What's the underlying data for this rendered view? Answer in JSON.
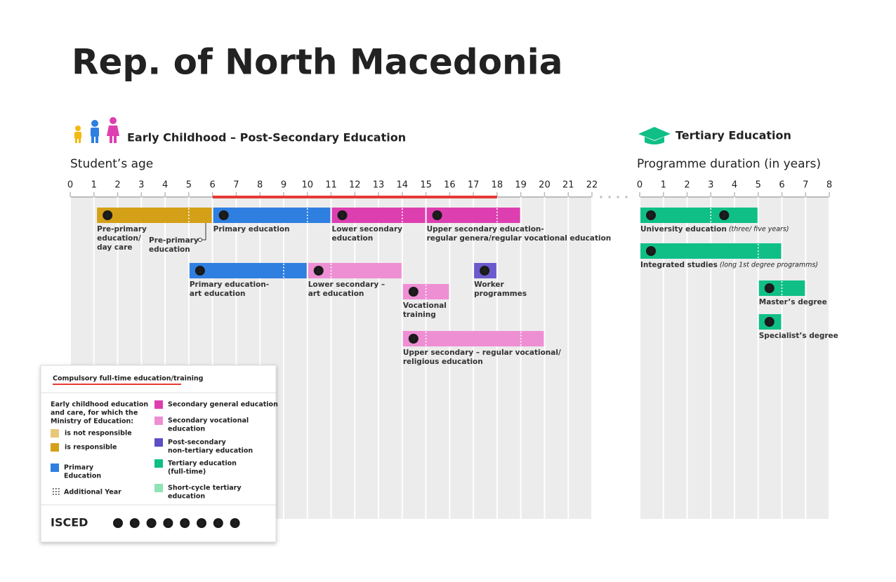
{
  "title": "Rep. of North Macedonia",
  "left": {
    "heading": "Early Childhood – Post-Secondary Education",
    "axis_title": "Student’s age",
    "ticks": [
      0,
      1,
      2,
      3,
      4,
      5,
      6,
      7,
      8,
      9,
      10,
      11,
      12,
      13,
      14,
      15,
      16,
      17,
      18,
      19,
      20,
      21,
      22
    ],
    "highlight_ticks": [
      5,
      7,
      8,
      9,
      10,
      11,
      12,
      13,
      14,
      15,
      16,
      17
    ],
    "compulsory": [
      6,
      18
    ],
    "programmes": [
      {
        "isced": [
          "0"
        ],
        "start": 1.1,
        "end": 6,
        "additional_year": [
          5
        ],
        "color": "#d4a017",
        "label": [
          "Pre-primary",
          "education/",
          "day care"
        ]
      },
      {
        "isced": [
          "1"
        ],
        "start": 6,
        "end": 11,
        "additional_year": [
          10
        ],
        "color": "#2f7fe0",
        "label": [
          "Primary education"
        ]
      },
      {
        "isced": [
          "2"
        ],
        "start": 11,
        "end": 15,
        "additional_year": [
          14
        ],
        "color": "#dd3fb0",
        "label": [
          "Lower secondary",
          "education"
        ]
      },
      {
        "isced": [
          "3"
        ],
        "start": 15,
        "end": 19,
        "additional_year": [
          18
        ],
        "color": "#dd3fb0",
        "label": [
          "Upper secondary education-",
          "regular genera/regular vocational education"
        ]
      },
      {
        "isced": [
          "1"
        ],
        "start": 5,
        "end": 10,
        "additional_year": [
          9
        ],
        "color": "#2f7fe0",
        "label": [
          "Primary education-",
          "art education"
        ]
      },
      {
        "isced": [
          "2"
        ],
        "start": 10,
        "end": 14,
        "additional_year": [
          11
        ],
        "color": "#ef8fd3",
        "label": [
          "Lower secondary –",
          "art education"
        ]
      },
      {
        "isced": [
          "4"
        ],
        "start": 17,
        "end": 18,
        "additional_year": [],
        "color": "#6a5acd",
        "label": [
          "Worker",
          "programmes"
        ]
      },
      {
        "isced": [
          "3"
        ],
        "start": 14,
        "end": 16,
        "additional_year": [
          15
        ],
        "color": "#ef8fd3",
        "label": [
          "Vocational",
          "training"
        ]
      },
      {
        "isced": [
          "3"
        ],
        "start": 14,
        "end": 20,
        "additional_year": [
          15,
          19
        ],
        "color": "#ef8fd3",
        "label": [
          "Upper secondary – regular vocational/",
          "religious education"
        ]
      }
    ],
    "pre_primary_note": [
      "Pre-primary",
      "education"
    ]
  },
  "right": {
    "heading": "Tertiary Education",
    "axis_title": "Programme duration (in years)",
    "ticks": [
      0,
      1,
      2,
      3,
      4,
      5,
      6,
      7,
      8
    ],
    "programmes": [
      {
        "isced": [
          "6",
          "7"
        ],
        "start": 0,
        "end": 5,
        "additional_year": [
          3
        ],
        "color": "#0fbf86",
        "label": [
          "University education"
        ],
        "note": "(three/ five years)"
      },
      {
        "isced": [
          "6"
        ],
        "start": 0,
        "end": 6,
        "additional_year": [
          5
        ],
        "color": "#0fbf86",
        "label": [
          "Integrated studies"
        ],
        "note": "(long 1st degree programms)"
      },
      {
        "isced": [
          "7"
        ],
        "start": 5,
        "end": 7,
        "additional_year": [
          6
        ],
        "color": "#0fbf86",
        "label": [
          "Master’s degree"
        ]
      },
      {
        "isced": [
          "7"
        ],
        "start": 5,
        "end": 6,
        "additional_year": [],
        "color": "#0fbf86",
        "label": [
          "Specialist’s degree"
        ]
      }
    ]
  },
  "legend": {
    "compulsory": "Compulsory full-time education/training",
    "ecec_heading": [
      "Early childhood education",
      "and care, for which the",
      "Ministry of Education:"
    ],
    "ecec_items": [
      {
        "label": "is not responsible",
        "color": "#e8c77a"
      },
      {
        "label": "is responsible",
        "color": "#d4a017"
      }
    ],
    "items": [
      {
        "label": [
          "Primary",
          "Education"
        ],
        "color": "#2f7fe0"
      },
      {
        "label": [
          "Secondary general education"
        ],
        "color": "#dd3fb0"
      },
      {
        "label": [
          "Secondary vocational",
          "education"
        ],
        "color": "#ef8fd3"
      },
      {
        "label": [
          "Post-secondary",
          "non-tertiary education"
        ],
        "color": "#5b4fc4"
      },
      {
        "label": [
          "Tertiary education",
          "(full-time)"
        ],
        "color": "#0fbf86"
      },
      {
        "label": [
          "Short-cycle tertiary",
          "education"
        ],
        "color": "#8fe3b5"
      }
    ],
    "additional_year": "Additional Year",
    "isced_title": "ISCED",
    "isced_levels": [
      "0",
      "1",
      "2",
      "3",
      "4",
      "5",
      "6",
      "7"
    ]
  }
}
